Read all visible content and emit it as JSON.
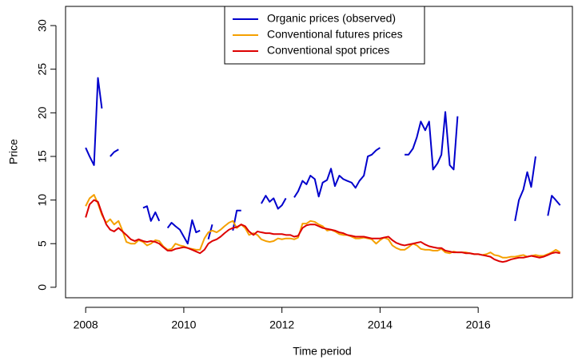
{
  "chart_data": {
    "type": "line",
    "xlabel": "Time period",
    "ylabel": "Price",
    "xlim": [
      2007.59,
      2017.92
    ],
    "ylim": [
      -1.2,
      32.2
    ],
    "xticks": [
      2008,
      2010,
      2012,
      2014,
      2016
    ],
    "yticks": [
      0,
      5,
      10,
      15,
      20,
      25,
      30
    ],
    "legend_position": "top",
    "x": [
      2008,
      2008.08,
      2008.17,
      2008.25,
      2008.33,
      2008.42,
      2008.5,
      2008.58,
      2008.67,
      2008.75,
      2008.83,
      2008.92,
      2009,
      2009.08,
      2009.17,
      2009.25,
      2009.33,
      2009.42,
      2009.5,
      2009.58,
      2009.67,
      2009.75,
      2009.83,
      2009.92,
      2010,
      2010.08,
      2010.17,
      2010.25,
      2010.33,
      2010.42,
      2010.5,
      2010.58,
      2010.67,
      2010.75,
      2010.83,
      2010.92,
      2011,
      2011.08,
      2011.17,
      2011.25,
      2011.33,
      2011.42,
      2011.5,
      2011.58,
      2011.67,
      2011.75,
      2011.83,
      2011.92,
      2012,
      2012.08,
      2012.17,
      2012.25,
      2012.33,
      2012.42,
      2012.5,
      2012.58,
      2012.67,
      2012.75,
      2012.83,
      2012.92,
      2013,
      2013.08,
      2013.17,
      2013.25,
      2013.33,
      2013.42,
      2013.5,
      2013.58,
      2013.67,
      2013.75,
      2013.83,
      2013.92,
      2014,
      2014.08,
      2014.17,
      2014.25,
      2014.33,
      2014.42,
      2014.5,
      2014.58,
      2014.67,
      2014.75,
      2014.83,
      2014.92,
      2015,
      2015.08,
      2015.17,
      2015.25,
      2015.33,
      2015.42,
      2015.5,
      2015.58,
      2015.67,
      2015.75,
      2015.83,
      2015.92,
      2016,
      2016.08,
      2016.17,
      2016.25,
      2016.33,
      2016.42,
      2016.5,
      2016.58,
      2016.67,
      2016.75,
      2016.83,
      2016.92,
      2017,
      2017.08,
      2017.17,
      2017.25,
      2017.33,
      2017.42,
      2017.5,
      2017.58,
      2017.67
    ],
    "series": [
      {
        "name": "Organic prices (observed)",
        "color": "#0000cc",
        "values": [
          16,
          15,
          14,
          24,
          20.5,
          null,
          15,
          15.5,
          15.8,
          null,
          null,
          null,
          null,
          null,
          9.1,
          9.3,
          7.6,
          8.6,
          7.6,
          null,
          6.8,
          7.4,
          7,
          6.6,
          5.8,
          5,
          7.7,
          6.3,
          6.5,
          null,
          5.5,
          7.2,
          null,
          null,
          null,
          null,
          6.5,
          8.8,
          8.8,
          null,
          null,
          null,
          null,
          9.6,
          10.5,
          9.8,
          10.2,
          9,
          9.4,
          10.2,
          null,
          10.3,
          11,
          12.2,
          11.8,
          12.8,
          12.4,
          10.4,
          12,
          12.3,
          13.6,
          11.6,
          12.8,
          12.4,
          12.2,
          12,
          11.4,
          12.2,
          12.8,
          15,
          15.2,
          15.7,
          16,
          null,
          null,
          null,
          null,
          null,
          15.2,
          15.2,
          15.9,
          17.2,
          19,
          18,
          19,
          13.5,
          14.2,
          15.2,
          20.1,
          14,
          13.5,
          19.6,
          null,
          null,
          null,
          null,
          null,
          null,
          null,
          null,
          null,
          null,
          null,
          null,
          null,
          7.6,
          10,
          11.2,
          13.2,
          11.5,
          15,
          null,
          null,
          8.2,
          10.5,
          10,
          9.4
        ]
      },
      {
        "name": "Conventional futures prices",
        "color": "#f5a000",
        "values": [
          9.3,
          10.2,
          10.6,
          9.6,
          8.3,
          7.4,
          7.8,
          7.2,
          7.6,
          6.5,
          5.2,
          5.0,
          5.0,
          5.4,
          5.2,
          4.8,
          5.0,
          5.4,
          5.3,
          4.7,
          4.3,
          4.4,
          5.0,
          4.8,
          4.7,
          4.5,
          4.4,
          4.3,
          4.3,
          5.6,
          6.3,
          6.5,
          6.3,
          6.6,
          7.0,
          7.4,
          7.6,
          6.8,
          7.2,
          6.8,
          6.0,
          6.2,
          6.0,
          5.5,
          5.3,
          5.2,
          5.3,
          5.6,
          5.5,
          5.6,
          5.6,
          5.5,
          5.7,
          7.3,
          7.3,
          7.6,
          7.5,
          7.2,
          7.0,
          6.5,
          6.6,
          6.4,
          6.1,
          6.0,
          6.0,
          5.8,
          5.6,
          5.6,
          5.7,
          5.6,
          5.5,
          5.0,
          5.4,
          5.7,
          5.5,
          4.8,
          4.5,
          4.3,
          4.3,
          4.6,
          5.0,
          4.8,
          4.4,
          4.3,
          4.3,
          4.2,
          4.2,
          4.4,
          4.0,
          3.9,
          4.1,
          4.0,
          4.0,
          4.0,
          3.9,
          3.8,
          3.8,
          3.7,
          3.8,
          4.0,
          3.7,
          3.6,
          3.4,
          3.4,
          3.5,
          3.5,
          3.6,
          3.7,
          3.5,
          3.6,
          3.7,
          3.6,
          3.6,
          3.8,
          4.0,
          4.3,
          4.0
        ]
      },
      {
        "name": "Conventional spot prices",
        "color": "#dd0000",
        "values": [
          8.0,
          9.5,
          10.0,
          9.8,
          8.5,
          7.2,
          6.6,
          6.4,
          6.8,
          6.4,
          6.0,
          5.5,
          5.3,
          5.5,
          5.3,
          5.2,
          5.3,
          5.2,
          5.0,
          4.6,
          4.2,
          4.2,
          4.4,
          4.5,
          4.6,
          4.5,
          4.3,
          4.1,
          3.9,
          4.3,
          5.0,
          5.3,
          5.5,
          5.8,
          6.2,
          6.6,
          6.8,
          6.9,
          7.2,
          7.0,
          6.4,
          6.0,
          6.4,
          6.3,
          6.2,
          6.2,
          6.1,
          6.1,
          6.1,
          6.0,
          6.0,
          5.8,
          5.9,
          6.8,
          7.1,
          7.2,
          7.2,
          7.0,
          6.8,
          6.7,
          6.6,
          6.5,
          6.3,
          6.2,
          6.0,
          5.9,
          5.8,
          5.8,
          5.8,
          5.7,
          5.6,
          5.6,
          5.6,
          5.7,
          5.8,
          5.4,
          5.1,
          4.9,
          4.8,
          4.9,
          5.0,
          5.1,
          5.2,
          4.9,
          4.7,
          4.6,
          4.5,
          4.5,
          4.2,
          4.1,
          4.0,
          4.0,
          4.0,
          3.9,
          3.9,
          3.8,
          3.8,
          3.7,
          3.6,
          3.5,
          3.2,
          3.0,
          2.9,
          3.0,
          3.2,
          3.3,
          3.4,
          3.4,
          3.5,
          3.6,
          3.5,
          3.4,
          3.5,
          3.7,
          3.9,
          4.0,
          3.9
        ]
      }
    ]
  }
}
